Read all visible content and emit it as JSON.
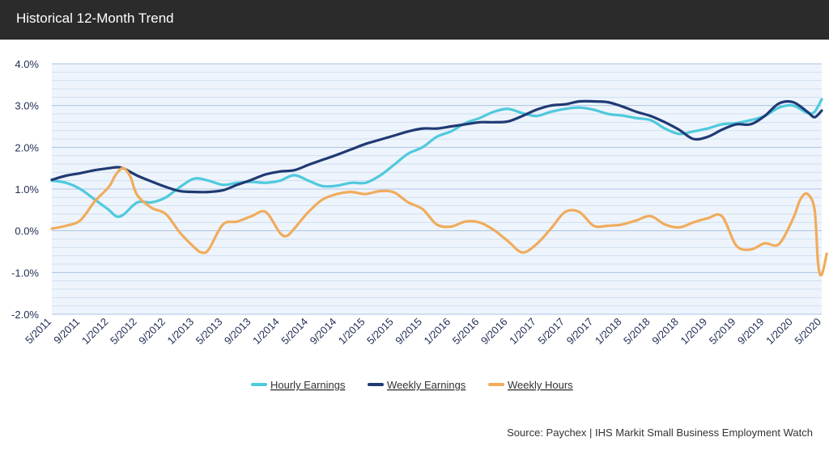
{
  "header": {
    "title": "Historical 12-Month Trend"
  },
  "source": "Source: Paychex | IHS Markit Small Business Employment Watch",
  "chart_data": {
    "type": "line",
    "title": "Historical 12-Month Trend",
    "xlabel": "",
    "ylabel": "",
    "ylim": [
      -2.0,
      4.0
    ],
    "ytick_labels": [
      "4.0%",
      "3.0%",
      "2.0%",
      "1.0%",
      "0.0%",
      "-1.0%",
      "-2.0%"
    ],
    "ytick_values": [
      4,
      3,
      2,
      1,
      0,
      -1,
      -2
    ],
    "x_tick_labels": [
      "5/2011",
      "9/2011",
      "1/2012",
      "5/2012",
      "9/2012",
      "1/2013",
      "5/2013",
      "9/2013",
      "1/2014",
      "5/2014",
      "9/2014",
      "1/2015",
      "5/2015",
      "9/2015",
      "1/2016",
      "5/2016",
      "9/2016",
      "1/2017",
      "5/2017",
      "9/2017",
      "1/2018",
      "5/2018",
      "9/2018",
      "1/2019",
      "5/2019",
      "9/2019",
      "1/2020",
      "5/2020"
    ],
    "grid": true,
    "legend_position": "bottom",
    "series": [
      {
        "name": "Hourly Earnings",
        "color": "#4fc9dd",
        "points": [
          [
            "5/2011",
            1.2
          ],
          [
            "7/2011",
            1.15
          ],
          [
            "9/2011",
            1.0
          ],
          [
            "11/2011",
            0.75
          ],
          [
            "1/2012",
            0.5
          ],
          [
            "2/2012",
            0.35
          ],
          [
            "3/2012",
            0.38
          ],
          [
            "5/2012",
            0.68
          ],
          [
            "7/2012",
            0.68
          ],
          [
            "9/2012",
            0.8
          ],
          [
            "11/2012",
            1.05
          ],
          [
            "1/2013",
            1.25
          ],
          [
            "3/2013",
            1.2
          ],
          [
            "5/2013",
            1.1
          ],
          [
            "7/2013",
            1.15
          ],
          [
            "9/2013",
            1.17
          ],
          [
            "11/2013",
            1.15
          ],
          [
            "1/2014",
            1.2
          ],
          [
            "3/2014",
            1.33
          ],
          [
            "5/2014",
            1.2
          ],
          [
            "7/2014",
            1.07
          ],
          [
            "9/2014",
            1.08
          ],
          [
            "11/2014",
            1.15
          ],
          [
            "1/2015",
            1.15
          ],
          [
            "3/2015",
            1.32
          ],
          [
            "5/2015",
            1.58
          ],
          [
            "7/2015",
            1.85
          ],
          [
            "9/2015",
            2.0
          ],
          [
            "11/2015",
            2.25
          ],
          [
            "1/2016",
            2.38
          ],
          [
            "3/2016",
            2.58
          ],
          [
            "5/2016",
            2.7
          ],
          [
            "7/2016",
            2.85
          ],
          [
            "9/2016",
            2.92
          ],
          [
            "11/2016",
            2.82
          ],
          [
            "1/2017",
            2.75
          ],
          [
            "3/2017",
            2.85
          ],
          [
            "5/2017",
            2.92
          ],
          [
            "7/2017",
            2.95
          ],
          [
            "9/2017",
            2.9
          ],
          [
            "11/2017",
            2.8
          ],
          [
            "1/2018",
            2.76
          ],
          [
            "3/2018",
            2.7
          ],
          [
            "5/2018",
            2.65
          ],
          [
            "7/2018",
            2.45
          ],
          [
            "9/2018",
            2.32
          ],
          [
            "11/2018",
            2.38
          ],
          [
            "1/2019",
            2.45
          ],
          [
            "3/2019",
            2.55
          ],
          [
            "5/2019",
            2.58
          ],
          [
            "7/2019",
            2.65
          ],
          [
            "9/2019",
            2.75
          ],
          [
            "11/2019",
            2.95
          ],
          [
            "1/2020",
            3.0
          ],
          [
            "3/2020",
            2.82
          ],
          [
            "4/2020",
            2.85
          ],
          [
            "5/2020",
            3.15
          ]
        ]
      },
      {
        "name": "Weekly Earnings",
        "color": "#1f3a73",
        "points": [
          [
            "5/2011",
            1.22
          ],
          [
            "7/2011",
            1.32
          ],
          [
            "9/2011",
            1.38
          ],
          [
            "11/2011",
            1.45
          ],
          [
            "1/2012",
            1.5
          ],
          [
            "2/2012",
            1.52
          ],
          [
            "3/2012",
            1.5
          ],
          [
            "5/2012",
            1.32
          ],
          [
            "7/2012",
            1.18
          ],
          [
            "9/2012",
            1.05
          ],
          [
            "11/2012",
            0.95
          ],
          [
            "1/2013",
            0.93
          ],
          [
            "3/2013",
            0.93
          ],
          [
            "5/2013",
            0.97
          ],
          [
            "7/2013",
            1.1
          ],
          [
            "9/2013",
            1.22
          ],
          [
            "11/2013",
            1.35
          ],
          [
            "1/2014",
            1.42
          ],
          [
            "3/2014",
            1.45
          ],
          [
            "5/2014",
            1.58
          ],
          [
            "7/2014",
            1.7
          ],
          [
            "9/2014",
            1.82
          ],
          [
            "11/2014",
            1.95
          ],
          [
            "1/2015",
            2.08
          ],
          [
            "3/2015",
            2.18
          ],
          [
            "5/2015",
            2.28
          ],
          [
            "7/2015",
            2.38
          ],
          [
            "9/2015",
            2.45
          ],
          [
            "11/2015",
            2.45
          ],
          [
            "1/2016",
            2.5
          ],
          [
            "3/2016",
            2.55
          ],
          [
            "5/2016",
            2.6
          ],
          [
            "7/2016",
            2.6
          ],
          [
            "9/2016",
            2.62
          ],
          [
            "11/2016",
            2.75
          ],
          [
            "1/2017",
            2.9
          ],
          [
            "3/2017",
            3.0
          ],
          [
            "5/2017",
            3.03
          ],
          [
            "7/2017",
            3.1
          ],
          [
            "9/2017",
            3.1
          ],
          [
            "11/2017",
            3.08
          ],
          [
            "1/2018",
            2.98
          ],
          [
            "3/2018",
            2.85
          ],
          [
            "5/2018",
            2.75
          ],
          [
            "7/2018",
            2.6
          ],
          [
            "9/2018",
            2.42
          ],
          [
            "11/2018",
            2.2
          ],
          [
            "1/2019",
            2.25
          ],
          [
            "3/2019",
            2.42
          ],
          [
            "5/2019",
            2.55
          ],
          [
            "7/2019",
            2.55
          ],
          [
            "9/2019",
            2.75
          ],
          [
            "11/2019",
            3.05
          ],
          [
            "1/2020",
            3.08
          ],
          [
            "3/2020",
            2.85
          ],
          [
            "4/2020",
            2.72
          ],
          [
            "5/2020",
            2.88
          ]
        ]
      },
      {
        "name": "Weekly Hours",
        "color": "#f0ac5c",
        "points": [
          [
            "5/2011",
            0.05
          ],
          [
            "7/2011",
            0.12
          ],
          [
            "9/2011",
            0.25
          ],
          [
            "11/2011",
            0.7
          ],
          [
            "1/2012",
            1.05
          ],
          [
            "2/2012",
            1.35
          ],
          [
            "3/2012",
            1.5
          ],
          [
            "4/2012",
            1.3
          ],
          [
            "5/2012",
            0.85
          ],
          [
            "7/2012",
            0.55
          ],
          [
            "9/2012",
            0.4
          ],
          [
            "11/2012",
            -0.05
          ],
          [
            "1/2013",
            -0.4
          ],
          [
            "2/2013",
            -0.52
          ],
          [
            "3/2013",
            -0.45
          ],
          [
            "5/2013",
            0.15
          ],
          [
            "7/2013",
            0.22
          ],
          [
            "9/2013",
            0.35
          ],
          [
            "11/2013",
            0.45
          ],
          [
            "1/2014",
            -0.05
          ],
          [
            "2/2014",
            -0.12
          ],
          [
            "3/2014",
            0.05
          ],
          [
            "5/2014",
            0.45
          ],
          [
            "7/2014",
            0.75
          ],
          [
            "9/2014",
            0.88
          ],
          [
            "11/2014",
            0.93
          ],
          [
            "1/2015",
            0.88
          ],
          [
            "3/2015",
            0.95
          ],
          [
            "5/2015",
            0.92
          ],
          [
            "7/2015",
            0.68
          ],
          [
            "9/2015",
            0.52
          ],
          [
            "11/2015",
            0.15
          ],
          [
            "1/2016",
            0.1
          ],
          [
            "3/2016",
            0.22
          ],
          [
            "5/2016",
            0.2
          ],
          [
            "7/2016",
            0.02
          ],
          [
            "9/2016",
            -0.25
          ],
          [
            "11/2016",
            -0.52
          ],
          [
            "1/2017",
            -0.32
          ],
          [
            "3/2017",
            0.05
          ],
          [
            "5/2017",
            0.45
          ],
          [
            "7/2017",
            0.45
          ],
          [
            "9/2017",
            0.12
          ],
          [
            "11/2017",
            0.12
          ],
          [
            "1/2018",
            0.15
          ],
          [
            "3/2018",
            0.25
          ],
          [
            "5/2018",
            0.35
          ],
          [
            "7/2018",
            0.15
          ],
          [
            "9/2018",
            0.08
          ],
          [
            "11/2018",
            0.2
          ],
          [
            "1/2019",
            0.3
          ],
          [
            "3/2019",
            0.35
          ],
          [
            "5/2019",
            -0.35
          ],
          [
            "7/2019",
            -0.45
          ],
          [
            "9/2019",
            -0.3
          ],
          [
            "11/2019",
            -0.32
          ],
          [
            "1/2020",
            0.3
          ],
          [
            "2/2020",
            0.75
          ],
          [
            "3/2020",
            0.88
          ],
          [
            "4/2020",
            0.5
          ],
          [
            "4.5/2020",
            -0.8
          ],
          [
            "5/2020",
            -1.05
          ],
          [
            "5.7/2020",
            -0.55
          ]
        ]
      }
    ]
  }
}
